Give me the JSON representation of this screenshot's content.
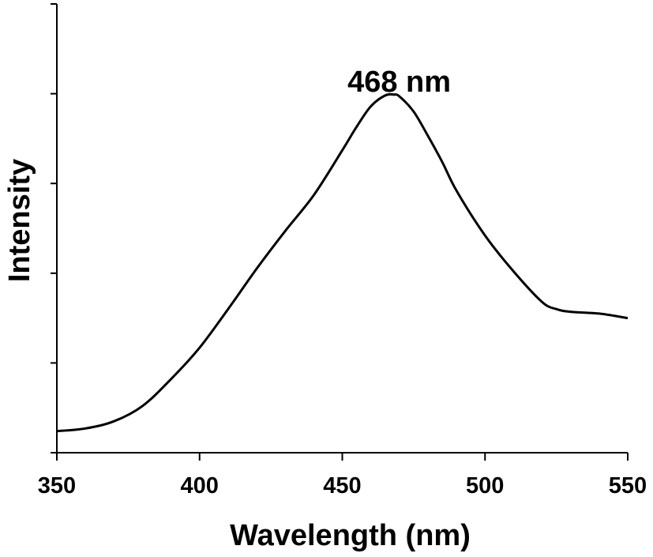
{
  "chart_data": {
    "type": "line",
    "xlabel": "Wavelength (nm)",
    "ylabel": "Intensity",
    "xlim": [
      350,
      550
    ],
    "ylim": [
      0,
      5
    ],
    "x_ticks": [
      "350",
      "400",
      "450",
      "500",
      "550"
    ],
    "y_ticks_labeled": false,
    "grid": false,
    "annotations": [
      {
        "text": "468 nm",
        "x": 468
      }
    ],
    "series": [
      {
        "color": "#000000",
        "x": [
          350,
          360,
          370,
          380,
          390,
          400,
          410,
          420,
          430,
          440,
          450,
          455,
          460,
          465,
          468,
          470,
          475,
          480,
          485,
          490,
          500,
          510,
          520,
          525,
          530,
          540,
          550
        ],
        "y": [
          0.24,
          0.27,
          0.35,
          0.52,
          0.82,
          1.17,
          1.6,
          2.05,
          2.47,
          2.87,
          3.37,
          3.63,
          3.86,
          3.98,
          3.99,
          3.97,
          3.8,
          3.53,
          3.24,
          2.92,
          2.42,
          2.02,
          1.68,
          1.6,
          1.57,
          1.55,
          1.5
        ]
      }
    ]
  }
}
